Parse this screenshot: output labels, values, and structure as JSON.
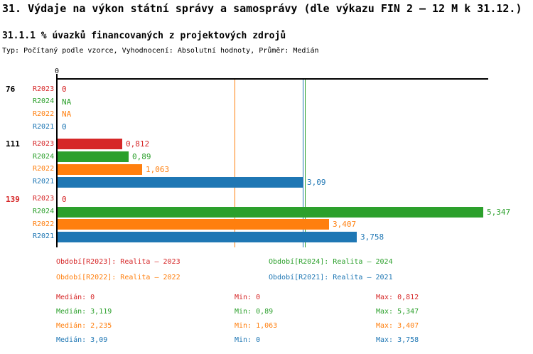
{
  "page": {
    "background": "#ffffff"
  },
  "header": {
    "title": "31. Výdaje na výkon státní správy a samosprávy (dle výkazu FIN 2 – 12 M k 31.12.)",
    "subtitle": "31.1.1 % úvazků financovaných z projektových zdrojů",
    "meta": "Typ: Počítaný podle vzorce, Vyhodnocení: Absolutní hodnoty, Průměr: Medián"
  },
  "chart_data": {
    "type": "bar",
    "orientation": "horizontal",
    "value_axis": {
      "origin_tick_label": "0",
      "min": 0,
      "max_visible": 5.347,
      "grid": "median-lines-only"
    },
    "series": [
      {
        "id": "R2023",
        "name": "Realita – 2023",
        "color": "#d62728",
        "median": 0,
        "min": 0,
        "max": 0.812
      },
      {
        "id": "R2024",
        "name": "Realita – 2024",
        "color": "#2ca02c",
        "median": 3.119,
        "min": 0.89,
        "max": 5.347
      },
      {
        "id": "R2022",
        "name": "Realita – 2022",
        "color": "#ff7f0e",
        "median": 2.235,
        "min": 1.063,
        "max": 3.407
      },
      {
        "id": "R2021",
        "name": "Realita – 2021",
        "color": "#1f77b4",
        "median": 3.09,
        "min": 0,
        "max": 3.758
      }
    ],
    "median_lines": [
      {
        "series": "R2022",
        "value": 2.235
      },
      {
        "series": "R2021",
        "value": 3.09
      },
      {
        "series": "R2024",
        "value": 3.119
      }
    ],
    "groups": [
      {
        "label": "76",
        "label_color": "#000000",
        "rows": [
          {
            "series": "R2023",
            "value": 0,
            "display": "0"
          },
          {
            "series": "R2024",
            "value": null,
            "display": "NA"
          },
          {
            "series": "R2022",
            "value": null,
            "display": "NA"
          },
          {
            "series": "R2021",
            "value": 0,
            "display": "0"
          }
        ]
      },
      {
        "label": "111",
        "label_color": "#000000",
        "rows": [
          {
            "series": "R2023",
            "value": 0.812,
            "display": "0,812"
          },
          {
            "series": "R2024",
            "value": 0.89,
            "display": "0,89"
          },
          {
            "series": "R2022",
            "value": 1.063,
            "display": "1,063"
          },
          {
            "series": "R2021",
            "value": 3.09,
            "display": "3,09"
          }
        ]
      },
      {
        "label": "139",
        "label_color": "#d62728",
        "rows": [
          {
            "series": "R2023",
            "value": 0,
            "display": "0"
          },
          {
            "series": "R2024",
            "value": 5.347,
            "display": "5,347"
          },
          {
            "series": "R2022",
            "value": 3.407,
            "display": "3,407"
          },
          {
            "series": "R2021",
            "value": 3.758,
            "display": "3,758"
          }
        ]
      }
    ]
  },
  "legend": {
    "items": [
      {
        "id": "R2023",
        "text": "Období[R2023]: Realita – 2023",
        "color": "#d62728"
      },
      {
        "id": "R2024",
        "text": "Období[R2024]: Realita – 2024",
        "color": "#2ca02c"
      },
      {
        "id": "R2022",
        "text": "Období[R2022]: Realita – 2022",
        "color": "#ff7f0e"
      },
      {
        "id": "R2021",
        "text": "Období[R2021]: Realita – 2021",
        "color": "#1f77b4"
      }
    ]
  },
  "stats": {
    "rows": [
      {
        "series": "R2023",
        "color": "#d62728",
        "cells": [
          "Medián: 0",
          "Min: 0",
          "Max: 0,812"
        ]
      },
      {
        "series": "R2024",
        "color": "#2ca02c",
        "cells": [
          "Medián: 3,119",
          "Min: 0,89",
          "Max: 5,347"
        ]
      },
      {
        "series": "R2022",
        "color": "#ff7f0e",
        "cells": [
          "Medián: 2,235",
          "Min: 1,063",
          "Max: 3,407"
        ]
      },
      {
        "series": "R2021",
        "color": "#1f77b4",
        "cells": [
          "Medián: 3,09",
          "Min: 0",
          "Max: 3,758"
        ]
      }
    ]
  }
}
